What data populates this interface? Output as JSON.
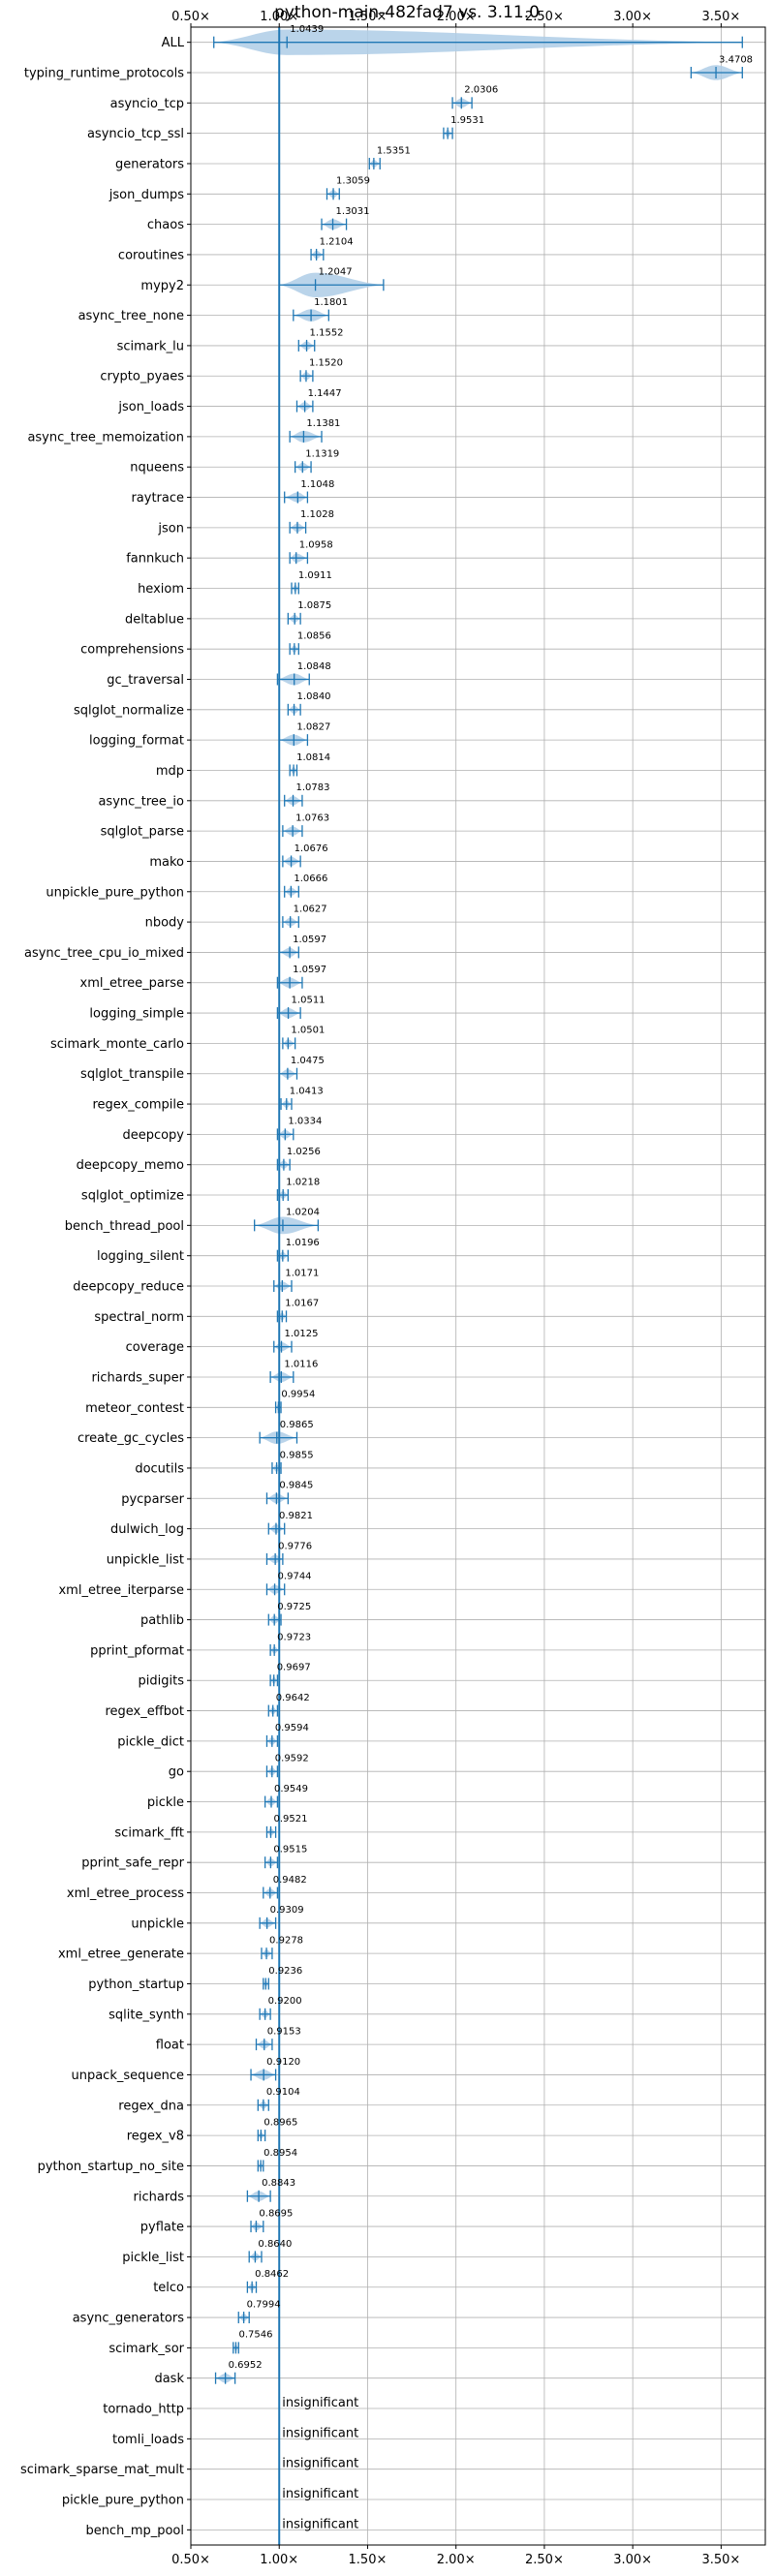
{
  "chart_data": {
    "type": "violin",
    "title": "python-main-482fad7 vs. 3.11.0",
    "x_unit_suffix": "×",
    "xlim": [
      0.5,
      3.75
    ],
    "xticks": [
      0.5,
      1.0,
      1.5,
      2.0,
      2.5,
      3.0,
      3.5
    ],
    "xtick_labels": [
      "0.50×",
      "1.00×",
      "1.50×",
      "2.00×",
      "2.50×",
      "3.00×",
      "3.50×"
    ],
    "reference_line": 1.0,
    "grid": true,
    "colors": {
      "series": "#1f77b4",
      "violin": "#aecde6",
      "grid": "#b0b0b0"
    },
    "benchmarks": [
      {
        "name": "ALL",
        "value": 1.0439,
        "label": "1.0439",
        "min": 0.63,
        "max": 3.62
      },
      {
        "name": "typing_runtime_protocols",
        "value": 3.4708,
        "label": "3.4708",
        "min": 3.33,
        "max": 3.62
      },
      {
        "name": "asyncio_tcp",
        "value": 2.0306,
        "label": "2.0306",
        "min": 1.98,
        "max": 2.09
      },
      {
        "name": "asyncio_tcp_ssl",
        "value": 1.9531,
        "label": "1.9531",
        "min": 1.93,
        "max": 1.98
      },
      {
        "name": "generators",
        "value": 1.5351,
        "label": "1.5351",
        "min": 1.51,
        "max": 1.57
      },
      {
        "name": "json_dumps",
        "value": 1.3059,
        "label": "1.3059",
        "min": 1.27,
        "max": 1.34
      },
      {
        "name": "chaos",
        "value": 1.3031,
        "label": "1.3031",
        "min": 1.24,
        "max": 1.38
      },
      {
        "name": "coroutines",
        "value": 1.2104,
        "label": "1.2104",
        "min": 1.18,
        "max": 1.25
      },
      {
        "name": "mypy2",
        "value": 1.2047,
        "label": "1.2047",
        "min": 1.0,
        "max": 1.59
      },
      {
        "name": "async_tree_none",
        "value": 1.1801,
        "label": "1.1801",
        "min": 1.08,
        "max": 1.28
      },
      {
        "name": "scimark_lu",
        "value": 1.1552,
        "label": "1.1552",
        "min": 1.11,
        "max": 1.2
      },
      {
        "name": "crypto_pyaes",
        "value": 1.152,
        "label": "1.1520",
        "min": 1.12,
        "max": 1.19
      },
      {
        "name": "json_loads",
        "value": 1.1447,
        "label": "1.1447",
        "min": 1.1,
        "max": 1.19
      },
      {
        "name": "async_tree_memoization",
        "value": 1.1381,
        "label": "1.1381",
        "min": 1.06,
        "max": 1.24
      },
      {
        "name": "nqueens",
        "value": 1.1319,
        "label": "1.1319",
        "min": 1.09,
        "max": 1.18
      },
      {
        "name": "raytrace",
        "value": 1.1048,
        "label": "1.1048",
        "min": 1.03,
        "max": 1.16
      },
      {
        "name": "json",
        "value": 1.1028,
        "label": "1.1028",
        "min": 1.06,
        "max": 1.15
      },
      {
        "name": "fannkuch",
        "value": 1.0958,
        "label": "1.0958",
        "min": 1.06,
        "max": 1.16
      },
      {
        "name": "hexiom",
        "value": 1.0911,
        "label": "1.0911",
        "min": 1.07,
        "max": 1.11
      },
      {
        "name": "deltablue",
        "value": 1.0875,
        "label": "1.0875",
        "min": 1.05,
        "max": 1.12
      },
      {
        "name": "comprehensions",
        "value": 1.0856,
        "label": "1.0856",
        "min": 1.06,
        "max": 1.11
      },
      {
        "name": "gc_traversal",
        "value": 1.0848,
        "label": "1.0848",
        "min": 0.99,
        "max": 1.17
      },
      {
        "name": "sqlglot_normalize",
        "value": 1.084,
        "label": "1.0840",
        "min": 1.05,
        "max": 1.12
      },
      {
        "name": "logging_format",
        "value": 1.0827,
        "label": "1.0827",
        "min": 1.0,
        "max": 1.16
      },
      {
        "name": "mdp",
        "value": 1.0814,
        "label": "1.0814",
        "min": 1.06,
        "max": 1.1
      },
      {
        "name": "async_tree_io",
        "value": 1.0783,
        "label": "1.0783",
        "min": 1.03,
        "max": 1.13
      },
      {
        "name": "sqlglot_parse",
        "value": 1.0763,
        "label": "1.0763",
        "min": 1.02,
        "max": 1.13
      },
      {
        "name": "mako",
        "value": 1.0676,
        "label": "1.0676",
        "min": 1.02,
        "max": 1.12
      },
      {
        "name": "unpickle_pure_python",
        "value": 1.0666,
        "label": "1.0666",
        "min": 1.03,
        "max": 1.11
      },
      {
        "name": "nbody",
        "value": 1.0627,
        "label": "1.0627",
        "min": 1.02,
        "max": 1.11
      },
      {
        "name": "async_tree_cpu_io_mixed",
        "value": 1.0597,
        "label": "1.0597",
        "min": 1.0,
        "max": 1.11
      },
      {
        "name": "xml_etree_parse",
        "value": 1.0597,
        "label": "1.0597",
        "min": 0.99,
        "max": 1.13
      },
      {
        "name": "logging_simple",
        "value": 1.0511,
        "label": "1.0511",
        "min": 0.99,
        "max": 1.12
      },
      {
        "name": "scimark_monte_carlo",
        "value": 1.0501,
        "label": "1.0501",
        "min": 1.02,
        "max": 1.09
      },
      {
        "name": "sqlglot_transpile",
        "value": 1.0475,
        "label": "1.0475",
        "min": 1.0,
        "max": 1.1
      },
      {
        "name": "regex_compile",
        "value": 1.0413,
        "label": "1.0413",
        "min": 1.01,
        "max": 1.07
      },
      {
        "name": "deepcopy",
        "value": 1.0334,
        "label": "1.0334",
        "min": 0.99,
        "max": 1.08
      },
      {
        "name": "deepcopy_memo",
        "value": 1.0256,
        "label": "1.0256",
        "min": 0.99,
        "max": 1.06
      },
      {
        "name": "sqlglot_optimize",
        "value": 1.0218,
        "label": "1.0218",
        "min": 0.99,
        "max": 1.05
      },
      {
        "name": "bench_thread_pool",
        "value": 1.0204,
        "label": "1.0204",
        "min": 0.86,
        "max": 1.22
      },
      {
        "name": "logging_silent",
        "value": 1.0196,
        "label": "1.0196",
        "min": 0.99,
        "max": 1.05
      },
      {
        "name": "deepcopy_reduce",
        "value": 1.0171,
        "label": "1.0171",
        "min": 0.97,
        "max": 1.07
      },
      {
        "name": "spectral_norm",
        "value": 1.0167,
        "label": "1.0167",
        "min": 0.99,
        "max": 1.04
      },
      {
        "name": "coverage",
        "value": 1.0125,
        "label": "1.0125",
        "min": 0.97,
        "max": 1.07
      },
      {
        "name": "richards_super",
        "value": 1.0116,
        "label": "1.0116",
        "min": 0.95,
        "max": 1.08
      },
      {
        "name": "meteor_contest",
        "value": 0.9954,
        "label": "0.9954",
        "min": 0.98,
        "max": 1.01
      },
      {
        "name": "create_gc_cycles",
        "value": 0.9865,
        "label": "0.9865",
        "min": 0.89,
        "max": 1.1
      },
      {
        "name": "docutils",
        "value": 0.9855,
        "label": "0.9855",
        "min": 0.96,
        "max": 1.01
      },
      {
        "name": "pycparser",
        "value": 0.9845,
        "label": "0.9845",
        "min": 0.93,
        "max": 1.05
      },
      {
        "name": "dulwich_log",
        "value": 0.9821,
        "label": "0.9821",
        "min": 0.94,
        "max": 1.03
      },
      {
        "name": "unpickle_list",
        "value": 0.9776,
        "label": "0.9776",
        "min": 0.93,
        "max": 1.02
      },
      {
        "name": "xml_etree_iterparse",
        "value": 0.9744,
        "label": "0.9744",
        "min": 0.93,
        "max": 1.03
      },
      {
        "name": "pathlib",
        "value": 0.9725,
        "label": "0.9725",
        "min": 0.94,
        "max": 1.01
      },
      {
        "name": "pprint_pformat",
        "value": 0.9723,
        "label": "0.9723",
        "min": 0.95,
        "max": 1.0
      },
      {
        "name": "pidigits",
        "value": 0.9697,
        "label": "0.9697",
        "min": 0.95,
        "max": 0.99
      },
      {
        "name": "regex_effbot",
        "value": 0.9642,
        "label": "0.9642",
        "min": 0.94,
        "max": 0.99
      },
      {
        "name": "pickle_dict",
        "value": 0.9594,
        "label": "0.9594",
        "min": 0.93,
        "max": 0.99
      },
      {
        "name": "go",
        "value": 0.9592,
        "label": "0.9592",
        "min": 0.93,
        "max": 0.99
      },
      {
        "name": "pickle",
        "value": 0.9549,
        "label": "0.9549",
        "min": 0.92,
        "max": 0.99
      },
      {
        "name": "scimark_fft",
        "value": 0.9521,
        "label": "0.9521",
        "min": 0.93,
        "max": 0.98
      },
      {
        "name": "pprint_safe_repr",
        "value": 0.9515,
        "label": "0.9515",
        "min": 0.92,
        "max": 0.99
      },
      {
        "name": "xml_etree_process",
        "value": 0.9482,
        "label": "0.9482",
        "min": 0.91,
        "max": 0.99
      },
      {
        "name": "unpickle",
        "value": 0.9309,
        "label": "0.9309",
        "min": 0.89,
        "max": 0.98
      },
      {
        "name": "xml_etree_generate",
        "value": 0.9278,
        "label": "0.9278",
        "min": 0.9,
        "max": 0.96
      },
      {
        "name": "python_startup",
        "value": 0.9236,
        "label": "0.9236",
        "min": 0.91,
        "max": 0.94
      },
      {
        "name": "sqlite_synth",
        "value": 0.92,
        "label": "0.9200",
        "min": 0.89,
        "max": 0.95
      },
      {
        "name": "float",
        "value": 0.9153,
        "label": "0.9153",
        "min": 0.87,
        "max": 0.96
      },
      {
        "name": "unpack_sequence",
        "value": 0.912,
        "label": "0.9120",
        "min": 0.84,
        "max": 0.98
      },
      {
        "name": "regex_dna",
        "value": 0.9104,
        "label": "0.9104",
        "min": 0.88,
        "max": 0.94
      },
      {
        "name": "regex_v8",
        "value": 0.8965,
        "label": "0.8965",
        "min": 0.88,
        "max": 0.92
      },
      {
        "name": "python_startup_no_site",
        "value": 0.8954,
        "label": "0.8954",
        "min": 0.88,
        "max": 0.91
      },
      {
        "name": "richards",
        "value": 0.8843,
        "label": "0.8843",
        "min": 0.82,
        "max": 0.95
      },
      {
        "name": "pyflate",
        "value": 0.8695,
        "label": "0.8695",
        "min": 0.84,
        "max": 0.91
      },
      {
        "name": "pickle_list",
        "value": 0.864,
        "label": "0.8640",
        "min": 0.83,
        "max": 0.9
      },
      {
        "name": "telco",
        "value": 0.8462,
        "label": "0.8462",
        "min": 0.82,
        "max": 0.87
      },
      {
        "name": "async_generators",
        "value": 0.7994,
        "label": "0.7994",
        "min": 0.77,
        "max": 0.83
      },
      {
        "name": "scimark_sor",
        "value": 0.7546,
        "label": "0.7546",
        "min": 0.74,
        "max": 0.77
      },
      {
        "name": "dask",
        "value": 0.6952,
        "label": "0.6952",
        "min": 0.64,
        "max": 0.75
      },
      {
        "name": "tornado_http",
        "insignificant": true,
        "label": "insignificant"
      },
      {
        "name": "tomli_loads",
        "insignificant": true,
        "label": "insignificant"
      },
      {
        "name": "scimark_sparse_mat_mult",
        "insignificant": true,
        "label": "insignificant"
      },
      {
        "name": "pickle_pure_python",
        "insignificant": true,
        "label": "insignificant"
      },
      {
        "name": "bench_mp_pool",
        "insignificant": true,
        "label": "insignificant"
      }
    ]
  }
}
